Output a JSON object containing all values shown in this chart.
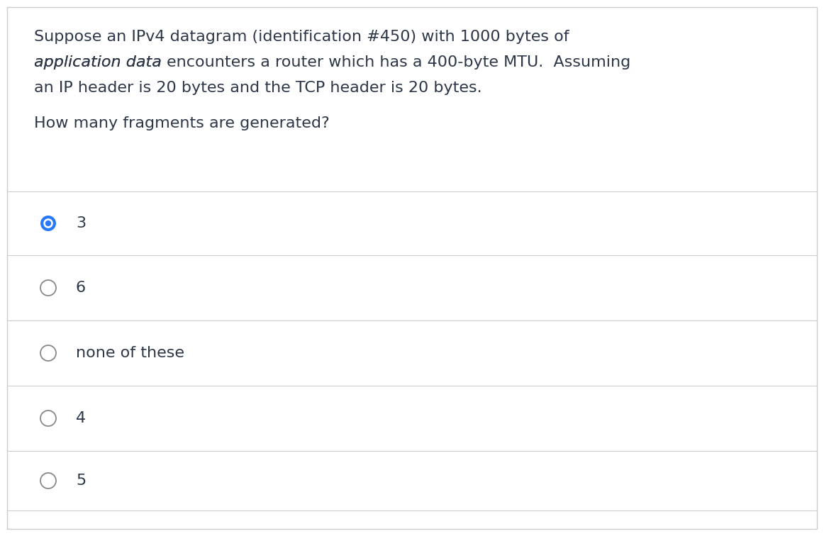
{
  "background_color": "#ffffff",
  "border_color": "#cccccc",
  "question_text_line1": "Suppose an IPv4 datagram (identification #450) with 1000 bytes of",
  "question_text_line2_italic": "application data ",
  "question_text_line2_normal": "encounters a router which has a 400-byte MTU.  Assuming",
  "question_text_line3": "an IP header is 20 bytes and the TCP header is 20 bytes.",
  "sub_question": "How many fragments are generated?",
  "options": [
    "3",
    "6",
    "none of these",
    "4",
    "5"
  ],
  "selected_index": 0,
  "text_color": "#2d3748",
  "line_color": "#cccccc",
  "radio_selected_outer": "#2979ff",
  "radio_selected_fill": "#2979ff",
  "radio_unselected_border": "#888888",
  "font_size_question": 16,
  "font_size_option": 16
}
